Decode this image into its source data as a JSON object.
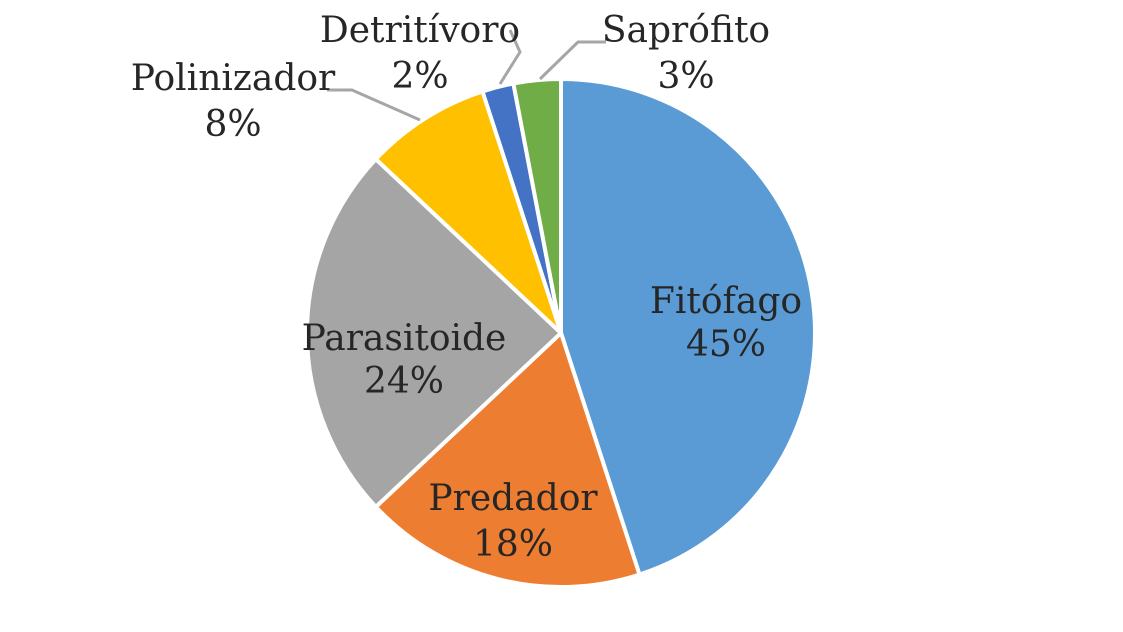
{
  "chart_data": {
    "type": "pie",
    "title": "",
    "slices": [
      {
        "name": "Fitófago",
        "value": 45,
        "label": "45%",
        "color": "#5B9BD5"
      },
      {
        "name": "Predador",
        "value": 18,
        "label": "18%",
        "color": "#ED7D31"
      },
      {
        "name": "Parasitoide",
        "value": 24,
        "label": "24%",
        "color": "#A5A5A5"
      },
      {
        "name": "Polinizador",
        "value": 8,
        "label": "8%",
        "color": "#FFC000"
      },
      {
        "name": "Detritívoro",
        "value": 2,
        "label": "2%",
        "color": "#4472C4"
      },
      {
        "name": "Saprófito",
        "value": 3,
        "label": "3%",
        "color": "#70AD47"
      }
    ],
    "start_angle_deg": 0,
    "direction": "clockwise",
    "legend": "none",
    "data_labels": "category-name and percent",
    "leader_line_color": "#A6A6A6"
  }
}
